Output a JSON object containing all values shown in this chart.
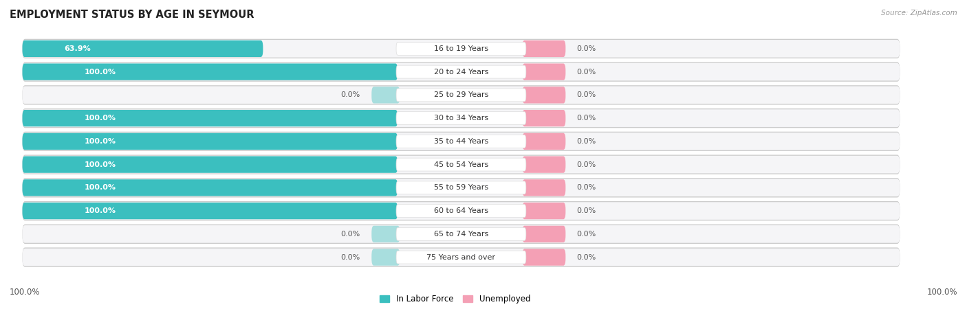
{
  "title": "Employment Status by Age in Seymour",
  "source": "Source: ZipAtlas.com",
  "categories": [
    "16 to 19 Years",
    "20 to 24 Years",
    "25 to 29 Years",
    "30 to 34 Years",
    "35 to 44 Years",
    "45 to 54 Years",
    "55 to 59 Years",
    "60 to 64 Years",
    "65 to 74 Years",
    "75 Years and over"
  ],
  "labor_force": [
    63.9,
    100.0,
    0.0,
    100.0,
    100.0,
    100.0,
    100.0,
    100.0,
    0.0,
    0.0
  ],
  "unemployed": [
    0.0,
    0.0,
    0.0,
    0.0,
    0.0,
    0.0,
    0.0,
    0.0,
    0.0,
    0.0
  ],
  "labor_force_color": "#3bbfbf",
  "labor_force_color_light": "#a8dede",
  "unemployed_color": "#f4a0b5",
  "row_bg": "#e8e8ec",
  "row_inner": "#f5f5f7",
  "title_fontsize": 10.5,
  "label_fontsize": 8.5,
  "tick_fontsize": 8.5,
  "max_value": 100.0,
  "left_axis_label": "100.0%",
  "right_axis_label": "100.0%",
  "legend_labor": "In Labor Force",
  "legend_unemployed": "Unemployed"
}
